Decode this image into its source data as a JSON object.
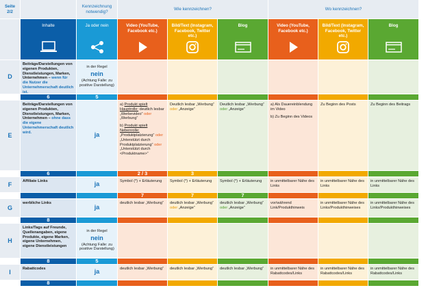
{
  "header": {
    "page": "Seite 2/2",
    "need": "Kennzeichnung notwendig?",
    "how": "Wie kennzeichnen?",
    "where": "Wo kennzeichnen?"
  },
  "columns": [
    {
      "label": "Inhalte",
      "color": "#0b5ea8",
      "tint": "#dce6f1"
    },
    {
      "label": "Ja oder nein",
      "color": "#1a9ad6",
      "tint": "#e6f2fa"
    },
    {
      "label": "Video (YouTube, Facebook etc.)",
      "color": "#e8601c",
      "tint": "#fce6d8"
    },
    {
      "label": "Bild/Text (Instagram, Facebook, Twitter etc.)",
      "color": "#f2a900",
      "tint": "#fdf1d8"
    },
    {
      "label": "Blog",
      "color": "#5aa832",
      "tint": "#e7f0df"
    },
    {
      "label": "Video (YouTube, Facebook etc.)",
      "color": "#e8601c",
      "tint": "#fce6d8"
    },
    {
      "label": "Bild/Text (Instagram, Facebook, Twitter etc.)",
      "color": "#f2a900",
      "tint": "#fdf1d8"
    },
    {
      "label": "Blog",
      "color": "#5aa832",
      "tint": "#e7f0df"
    }
  ],
  "rows": [
    {
      "letter": "D",
      "cells": [
        [
          [
            {
              "text": "Beiträge/Darstellungen von eigenen Produkten, Dienstleistungen, Marken, Unternehmen – ",
              "style": "b"
            },
            {
              "text": "wenn für die Nutzer die Unternehmerschaft deutlich ist.",
              "style": "blue"
            }
          ]
        ],
        [
          [
            "in der Regel"
          ],
          [
            {
              "text": "nein",
              "style": "big"
            }
          ],
          [
            "(Achtung Falle: zu positive Darstellung)"
          ]
        ],
        [],
        [],
        [],
        [],
        [],
        []
      ],
      "bar": [
        "6",
        "5",
        null,
        null,
        null,
        null,
        null,
        null
      ]
    },
    {
      "letter": "E",
      "cells": [
        [
          [
            {
              "text": "Beiträge/Darstellungen von eigenen Produkten, Dienstleistungen, Marken, Unternehmen – ",
              "style": "b"
            },
            {
              "text": "ohne dass die eigene Unternehmerschaft deutlich wird.",
              "style": "blue"
            }
          ]
        ],
        [
          [
            {
              "text": "ja",
              "style": "big"
            }
          ]
        ],
        [
          [
            "a) ",
            {
              "text": "Produkt spielt Hauptrolle:",
              "style": "u"
            },
            " deutlich lesbar „Werbevideo“ ",
            {
              "text": "oder",
              "style": "or"
            },
            " „Werbung“"
          ],
          [
            "b) ",
            {
              "text": "Produkt spielt Nebenrolle:",
              "style": "u"
            },
            " „Produktplatzierung“ ",
            {
              "text": "oder",
              "style": "or"
            },
            " „Unterstützt durch Produktplatzierung“ ",
            {
              "text": "oder",
              "style": "or"
            },
            " „Unterstützt durch <Produktname>“"
          ]
        ],
        [
          [
            "Deutlich lesbar „Werbung“ ",
            {
              "text": "oder",
              "style": "ye"
            },
            " „Anzeige“"
          ]
        ],
        [
          [
            "Deutlich lesbar „Werbung“ ",
            {
              "text": "oder",
              "style": "gr"
            },
            " „Anzeige“"
          ]
        ],
        [
          [
            "a) Als Dauereinblendung im Video"
          ],
          [
            "b) Zu Beginn des Videos"
          ]
        ],
        [
          [
            "Zu Beginn des Posts"
          ]
        ],
        [
          [
            "Zu Beginn des Beitrags"
          ]
        ]
      ],
      "bar": [
        "6",
        null,
        "2 / 3",
        "3",
        null,
        null,
        null,
        null
      ]
    },
    {
      "letter": "F",
      "cells": [
        [
          [
            "Affiliate Links"
          ]
        ],
        [
          [
            {
              "text": "ja",
              "style": "big"
            }
          ]
        ],
        [
          [
            "Symbol (*) + Erläuterung"
          ]
        ],
        [
          [
            "Symbol (*) + Erläuterung"
          ]
        ],
        [
          [
            "Symbol (*) + Erläuterung"
          ]
        ],
        [
          [
            "in unmittelbarer Nähe des Links"
          ]
        ],
        [
          [
            "in unmittelbarer Nähe des Links"
          ]
        ],
        [
          [
            "in unmittelbarer Nähe des Links"
          ]
        ]
      ],
      "bar": [
        null,
        null,
        "7",
        "7",
        "7",
        null,
        null,
        null
      ]
    },
    {
      "letter": "G",
      "cells": [
        [
          [
            "werbliche Links"
          ]
        ],
        [
          [
            {
              "text": "ja",
              "style": "big"
            }
          ]
        ],
        [
          [
            "deutlich lesbar „Werbung“"
          ]
        ],
        [
          [
            "deutlich lesbar „Werbung“ ",
            {
              "text": "oder",
              "style": "ye"
            },
            " „Anzeige“"
          ]
        ],
        [
          [
            "deutlich lesbar „Werbung“ ",
            {
              "text": "oder",
              "style": "gr"
            },
            " „Anzeige“"
          ]
        ],
        [
          [
            "vor/während Link/Produkthinweis"
          ]
        ],
        [
          [
            "in unmittelbarer Nähe des Links/Produkthinweises"
          ]
        ],
        [
          [
            "in unmittelbarer Nähe des Links/Produkthinweises"
          ]
        ]
      ],
      "bar": [
        "8",
        null,
        null,
        null,
        null,
        null,
        null,
        null
      ]
    },
    {
      "letter": "H",
      "cells": [
        [
          [
            "Links/Tags auf Freunde, Quellenangaben, eigene Produkte, eigene Marken, eigene Unternehmen, eigene Dienstleistungen"
          ]
        ],
        [
          [
            "in der Regel"
          ],
          [
            {
              "text": "nein",
              "style": "big"
            }
          ],
          [
            "(Achtung Falle: zu positive Darstellung)"
          ]
        ],
        [],
        [],
        [],
        [],
        [],
        []
      ],
      "bar": [
        "8",
        "5",
        null,
        null,
        null,
        null,
        null,
        null
      ]
    },
    {
      "letter": "I",
      "cells": [
        [
          [
            "Rabattcodes"
          ]
        ],
        [
          [
            {
              "text": "ja",
              "style": "big"
            }
          ]
        ],
        [
          [
            "deutlich lesbar „Werbung“"
          ]
        ],
        [
          [
            "deutlich lesbar „Werbung“"
          ]
        ],
        [
          [
            "deutlich lesbar „Werbung“"
          ]
        ],
        [
          [
            "in unmittelbarer Nähe des Rabattcodes/Links"
          ]
        ],
        [
          [
            "in unmittelbarer Nähe des Rabattcodes/Links"
          ]
        ],
        [
          [
            "in unmittelbarer Nähe des Rabattcodes/Links"
          ]
        ]
      ],
      "bar": [
        "8",
        null,
        null,
        null,
        null,
        null,
        null,
        null
      ]
    }
  ]
}
